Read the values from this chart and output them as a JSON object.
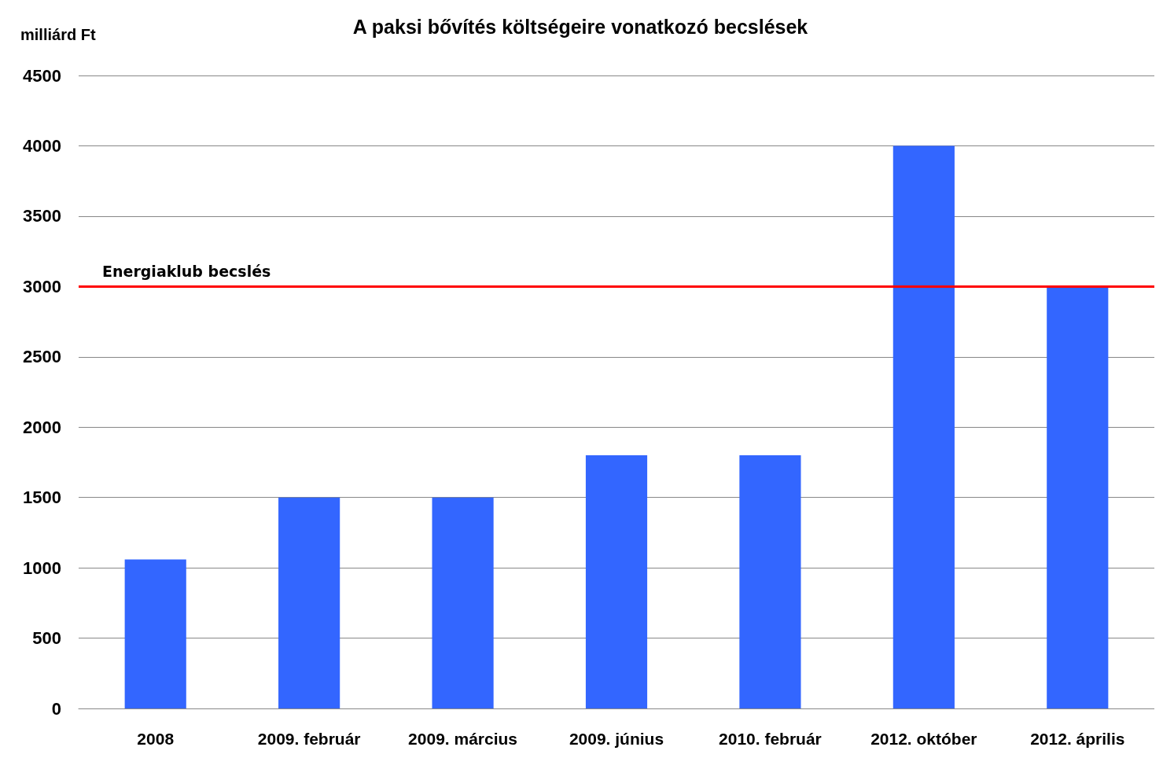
{
  "chart_data": {
    "type": "bar",
    "title": "A paksi bővítés költségeire vonatkozó becslések",
    "ylabel": "milliárd Ft",
    "categories": [
      "2008",
      "2009. február",
      "2009. március",
      "2009. június",
      "2010. február",
      "2012. október",
      "2012. április"
    ],
    "values": [
      1060,
      1500,
      1500,
      1800,
      1800,
      4000,
      3000
    ],
    "color": "#3366ff",
    "ylim": [
      0,
      4500
    ],
    "yticks": [
      0,
      500,
      1000,
      1500,
      2000,
      2500,
      3000,
      3500,
      4000,
      4500
    ],
    "grid": "y",
    "ref_lines": [
      {
        "axis": "y",
        "value": 3000,
        "label": "Energiaklub becslés",
        "color": "#ff0000",
        "line_style": "solid"
      }
    ]
  }
}
